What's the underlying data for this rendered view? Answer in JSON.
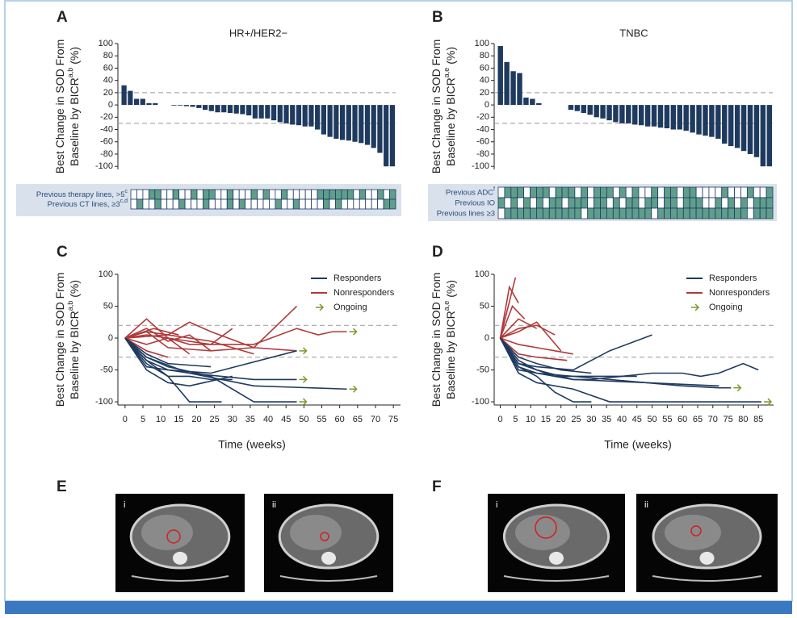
{
  "chart_data": [
    {
      "letter": "A",
      "type": "bar",
      "title": "HR+/HER2−",
      "y_label_lines": [
        "Best Change in SOD From",
        "Baseline by BICR"
      ],
      "y_label_sup": "a,b",
      "y_label_suffix": "(%)",
      "values": [
        32,
        23,
        10,
        10,
        3,
        3,
        0,
        0,
        -1,
        -1,
        -2,
        -3,
        -5,
        -8,
        -10,
        -12,
        -12,
        -13,
        -14,
        -15,
        -17,
        -22,
        -22,
        -22,
        -25,
        -28,
        -30,
        -32,
        -33,
        -35,
        -35,
        -40,
        -48,
        -52,
        -55,
        -57,
        -58,
        -60,
        -62,
        -65,
        -70,
        -78,
        -100,
        -100
      ],
      "color": "#1f3a5f",
      "ylim": [
        -105,
        100
      ],
      "yticks": [
        -100,
        -80,
        -60,
        -40,
        -20,
        0,
        20,
        40,
        60,
        80,
        100
      ],
      "reference_lines": [
        20,
        -30
      ],
      "matrix": {
        "on_color": "#5f9e8c",
        "off_color": "#ffffff",
        "rows": [
          {
            "label": "Previous therapy lines, >5",
            "sup": "c",
            "values": [
              0,
              0,
              0,
              1,
              1,
              0,
              0,
              1,
              0,
              0,
              1,
              0,
              1,
              1,
              0,
              0,
              1,
              0,
              0,
              0,
              1,
              0,
              1,
              0,
              0,
              1,
              0,
              0,
              0,
              0,
              0,
              1,
              1,
              1,
              1,
              1,
              1,
              0,
              1,
              0,
              0,
              1,
              0,
              1
            ]
          },
          {
            "label": "Previous CT lines, ≥3",
            "sup": "c,d",
            "values": [
              0,
              1,
              0,
              0,
              1,
              0,
              0,
              0,
              1,
              0,
              0,
              0,
              1,
              0,
              0,
              0,
              1,
              0,
              1,
              0,
              0,
              0,
              0,
              0,
              1,
              0,
              0,
              1,
              0,
              0,
              0,
              0,
              1,
              0,
              1,
              0,
              0,
              0,
              0,
              0,
              0,
              0,
              1,
              1
            ]
          }
        ]
      }
    },
    {
      "letter": "B",
      "type": "bar",
      "title": "TNBC",
      "y_label_lines": [
        "Best Change in SOD From",
        "Baseline by BICR"
      ],
      "y_label_sup": "a,e",
      "y_label_suffix": "(%)",
      "values": [
        96,
        70,
        55,
        52,
        12,
        10,
        3,
        0,
        0,
        0,
        0,
        -8,
        -10,
        -13,
        -16,
        -20,
        -22,
        -25,
        -28,
        -30,
        -30,
        -32,
        -33,
        -35,
        -35,
        -37,
        -38,
        -40,
        -40,
        -42,
        -45,
        -48,
        -50,
        -52,
        -55,
        -63,
        -67,
        -70,
        -75,
        -80,
        -85,
        -100,
        -100
      ],
      "color": "#1f3a5f",
      "ylim": [
        -105,
        100
      ],
      "yticks": [
        -100,
        -80,
        -60,
        -40,
        -20,
        0,
        20,
        40,
        60,
        80,
        100
      ],
      "reference_lines": [
        20,
        -30
      ],
      "matrix": {
        "on_color": "#5f9e8c",
        "off_color": "#ffffff",
        "rows": [
          {
            "label": "Previous ADC",
            "sup": "f",
            "values": [
              0,
              1,
              1,
              1,
              0,
              1,
              1,
              1,
              0,
              1,
              1,
              1,
              0,
              1,
              0,
              1,
              1,
              1,
              0,
              1,
              0,
              1,
              0,
              0,
              1,
              0,
              1,
              1,
              0,
              1,
              1,
              0,
              0,
              0,
              0,
              1,
              0,
              0,
              0,
              1,
              0,
              0,
              1
            ]
          },
          {
            "label": "Previous IO",
            "values": [
              1,
              0,
              1,
              0,
              1,
              0,
              1,
              0,
              1,
              1,
              0,
              1,
              1,
              1,
              0,
              1,
              1,
              0,
              1,
              0,
              1,
              1,
              0,
              1,
              1,
              0,
              1,
              1,
              0,
              1,
              1,
              1,
              0,
              0,
              1,
              0,
              1,
              0,
              1,
              0,
              1,
              1,
              1
            ]
          },
          {
            "label": "Previous lines ≥3",
            "values": [
              0,
              1,
              1,
              1,
              1,
              1,
              1,
              1,
              1,
              1,
              1,
              1,
              1,
              0,
              1,
              1,
              1,
              1,
              1,
              1,
              1,
              1,
              1,
              1,
              0,
              1,
              1,
              1,
              1,
              1,
              1,
              1,
              1,
              1,
              1,
              1,
              1,
              1,
              1,
              0,
              1,
              1,
              1
            ]
          }
        ]
      }
    },
    {
      "letter": "C",
      "type": "line",
      "y_label_lines": [
        "Best Change in SOD From",
        "Baseline by BICR"
      ],
      "y_label_sup": "a,b",
      "y_label_suffix": "(%)",
      "x_label": "Time (weeks)",
      "xlim": [
        -2,
        77
      ],
      "xticks": [
        0,
        5,
        10,
        15,
        20,
        25,
        30,
        35,
        40,
        45,
        50,
        55,
        60,
        65,
        70,
        75
      ],
      "ylim": [
        -105,
        100
      ],
      "yticks": [
        -100,
        -50,
        0,
        50,
        100
      ],
      "reference_lines": [
        20,
        -30
      ],
      "groups": [
        {
          "name": "Responders",
          "color": "#1f3a5f"
        },
        {
          "name": "Nonresponders",
          "color": "#b03a3a"
        }
      ],
      "ongoing_label": "Ongoing",
      "ongoing_color": "#7a9a2a",
      "lines": [
        {
          "group": 1,
          "x": [
            0,
            6,
            12,
            18,
            24,
            36,
            48
          ],
          "values": [
            0,
            10,
            5,
            25,
            10,
            -15,
            50
          ]
        },
        {
          "group": 1,
          "x": [
            0,
            6,
            12,
            24,
            30
          ],
          "values": [
            0,
            30,
            0,
            -10,
            15
          ]
        },
        {
          "group": 1,
          "x": [
            0,
            6,
            12,
            18,
            24
          ],
          "values": [
            0,
            15,
            -5,
            5,
            -20
          ]
        },
        {
          "group": 1,
          "x": [
            0,
            6,
            12,
            18,
            36,
            48,
            54,
            58,
            62
          ],
          "values": [
            0,
            5,
            0,
            -10,
            -10,
            15,
            5,
            10,
            10
          ],
          "ongoing": true
        },
        {
          "group": 1,
          "x": [
            0,
            6,
            12,
            18
          ],
          "values": [
            0,
            -10,
            0,
            -25
          ]
        },
        {
          "group": 1,
          "x": [
            0,
            6,
            12,
            24,
            36,
            48
          ],
          "values": [
            0,
            10,
            -15,
            -20,
            -15,
            -20
          ],
          "ongoing": true
        },
        {
          "group": 1,
          "x": [
            0,
            8,
            15
          ],
          "values": [
            0,
            15,
            5
          ]
        },
        {
          "group": 1,
          "x": [
            0,
            6,
            12
          ],
          "values": [
            0,
            -20,
            -30
          ]
        },
        {
          "group": 1,
          "x": [
            0,
            12,
            24,
            36
          ],
          "values": [
            0,
            5,
            -5,
            -25
          ]
        },
        {
          "group": 0,
          "x": [
            0,
            6,
            12,
            18,
            27
          ],
          "values": [
            0,
            -40,
            -60,
            -100,
            -100
          ]
        },
        {
          "group": 0,
          "x": [
            0,
            6,
            12,
            24,
            36,
            48
          ],
          "values": [
            0,
            -30,
            -45,
            -60,
            -100,
            -100
          ],
          "ongoing": true
        },
        {
          "group": 0,
          "x": [
            0,
            6,
            12,
            18,
            36,
            48
          ],
          "values": [
            0,
            -35,
            -50,
            -55,
            -65,
            -65
          ],
          "ongoing": true
        },
        {
          "group": 0,
          "x": [
            0,
            6,
            18,
            36,
            62
          ],
          "values": [
            0,
            -30,
            -55,
            -75,
            -80
          ],
          "ongoing": true
        },
        {
          "group": 0,
          "x": [
            0,
            6,
            12,
            24,
            48
          ],
          "values": [
            0,
            -45,
            -50,
            -55,
            -20
          ]
        },
        {
          "group": 0,
          "x": [
            0,
            6,
            12,
            18,
            30
          ],
          "values": [
            0,
            -50,
            -70,
            -75,
            -60
          ]
        },
        {
          "group": 0,
          "x": [
            0,
            6,
            12,
            24
          ],
          "values": [
            0,
            -25,
            -40,
            -45
          ]
        },
        {
          "group": 0,
          "x": [
            0,
            6,
            12,
            18,
            24,
            30
          ],
          "values": [
            0,
            -35,
            -60,
            -60,
            -65,
            -65
          ]
        }
      ]
    },
    {
      "letter": "D",
      "type": "line",
      "y_label_lines": [
        "Best Change in SOD From",
        "Baseline by BICR"
      ],
      "y_label_sup": "a,e",
      "y_label_suffix": "(%)",
      "x_label": "Time (weeks)",
      "xlim": [
        -2,
        90
      ],
      "xticks": [
        0,
        5,
        10,
        15,
        20,
        25,
        30,
        35,
        40,
        45,
        50,
        55,
        60,
        65,
        70,
        75,
        80,
        85
      ],
      "ylim": [
        -105,
        100
      ],
      "yticks": [
        -100,
        -50,
        0,
        50,
        100
      ],
      "reference_lines": [
        20,
        -30
      ],
      "groups": [
        {
          "name": "Responders",
          "color": "#1f3a5f"
        },
        {
          "name": "Nonresponders",
          "color": "#b03a3a"
        }
      ],
      "ongoing_label": "Ongoing",
      "ongoing_color": "#7a9a2a",
      "lines": [
        {
          "group": 1,
          "x": [
            0,
            5
          ],
          "values": [
            0,
            95
          ]
        },
        {
          "group": 1,
          "x": [
            0,
            3,
            6
          ],
          "values": [
            0,
            80,
            55
          ]
        },
        {
          "group": 1,
          "x": [
            0,
            4,
            8
          ],
          "values": [
            0,
            50,
            30
          ]
        },
        {
          "group": 1,
          "x": [
            0,
            6,
            12,
            18
          ],
          "values": [
            0,
            15,
            20,
            5
          ]
        },
        {
          "group": 1,
          "x": [
            0,
            6,
            12,
            20
          ],
          "values": [
            0,
            10,
            25,
            -20
          ]
        },
        {
          "group": 1,
          "x": [
            0,
            6,
            12,
            18,
            24
          ],
          "values": [
            0,
            -10,
            -15,
            -20,
            -25
          ]
        },
        {
          "group": 1,
          "x": [
            0,
            6,
            12,
            22
          ],
          "values": [
            0,
            -25,
            -30,
            -35
          ]
        },
        {
          "group": 1,
          "x": [
            0,
            6,
            12
          ],
          "values": [
            0,
            30,
            15
          ]
        },
        {
          "group": 0,
          "x": [
            0,
            6,
            12,
            24,
            36,
            50
          ],
          "values": [
            0,
            -40,
            -45,
            -50,
            -20,
            5
          ]
        },
        {
          "group": 0,
          "x": [
            0,
            6,
            12,
            18,
            24,
            30,
            40,
            50,
            60,
            66,
            72,
            80,
            85
          ],
          "values": [
            0,
            -50,
            -55,
            -60,
            -65,
            -65,
            -60,
            -55,
            -55,
            -60,
            -55,
            -40,
            -50
          ]
        },
        {
          "group": 0,
          "x": [
            0,
            6,
            12,
            24,
            36,
            48,
            60,
            72,
            76
          ],
          "values": [
            0,
            -45,
            -55,
            -60,
            -65,
            -70,
            -75,
            -78,
            -78
          ],
          "ongoing": true
        },
        {
          "group": 0,
          "x": [
            0,
            6,
            12,
            24,
            36,
            86
          ],
          "values": [
            0,
            -55,
            -70,
            -80,
            -100,
            -100
          ],
          "ongoing": true
        },
        {
          "group": 0,
          "x": [
            0,
            6,
            12,
            18,
            24,
            30
          ],
          "values": [
            0,
            -45,
            -60,
            -85,
            -100,
            -100
          ]
        },
        {
          "group": 0,
          "x": [
            0,
            6,
            12,
            24,
            48,
            72
          ],
          "values": [
            0,
            -35,
            -50,
            -65,
            -70,
            -75
          ]
        },
        {
          "group": 0,
          "x": [
            0,
            6,
            12,
            20,
            30
          ],
          "values": [
            0,
            -30,
            -40,
            -50,
            -55
          ]
        },
        {
          "group": 0,
          "x": [
            0,
            6,
            18,
            30,
            45
          ],
          "values": [
            0,
            -40,
            -60,
            -60,
            -60
          ]
        }
      ]
    }
  ],
  "image_panels": [
    {
      "letter": "E",
      "labels": [
        "i",
        "ii"
      ]
    },
    {
      "letter": "F",
      "labels": [
        "i",
        "ii"
      ]
    }
  ]
}
